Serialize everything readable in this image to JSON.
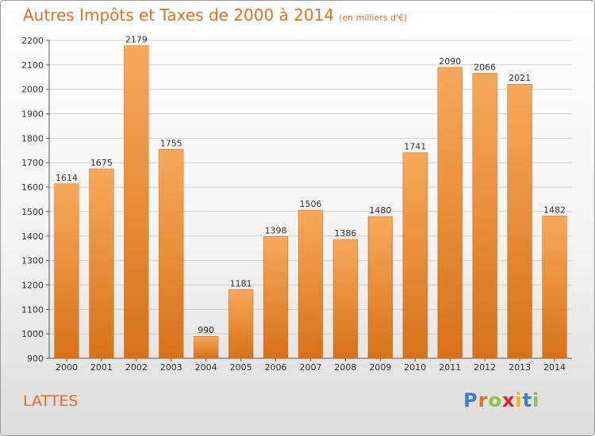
{
  "header": {
    "title": "Autres Impôts et Taxes de 2000 à 2014",
    "subtitle": "(en milliers d'€)"
  },
  "footer": {
    "place": "LATTES",
    "logo": [
      "P",
      "r",
      "o",
      "x",
      "i",
      "t",
      "i"
    ]
  },
  "colors": {
    "accent": "#e46f1c",
    "bar_light": "#f7a95a",
    "bar_dark": "#d77218",
    "logo": [
      "#3a7fd0",
      "#e46f1c",
      "#8cc63f",
      "#e2231a",
      "#f7b500",
      "#3a7fd0",
      "#8cc63f"
    ]
  },
  "chart_data": {
    "type": "bar",
    "title": "Autres Impôts et Taxes de 2000 à 2014",
    "subtitle": "(en milliers d'€)",
    "categories": [
      "2000",
      "2001",
      "2002",
      "2003",
      "2004",
      "2005",
      "2006",
      "2007",
      "2008",
      "2009",
      "2010",
      "2011",
      "2012",
      "2013",
      "2014"
    ],
    "values": [
      1614,
      1675,
      2179,
      1755,
      990,
      1181,
      1398,
      1506,
      1386,
      1480,
      1741,
      2090,
      2066,
      2021,
      1482
    ],
    "ylim": [
      900,
      2200
    ],
    "yticks": [
      900,
      1000,
      1100,
      1200,
      1300,
      1400,
      1500,
      1600,
      1700,
      1800,
      1900,
      2000,
      2100,
      2200
    ],
    "grid": true,
    "data_labels": true
  }
}
